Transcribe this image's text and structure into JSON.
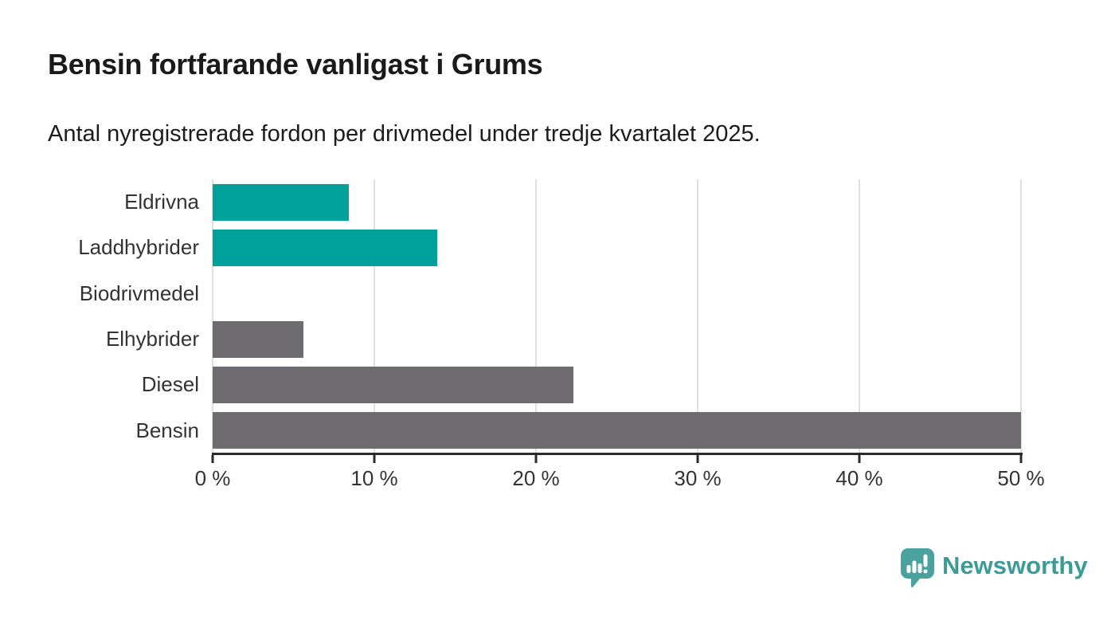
{
  "header": {
    "title": "Bensin fortfarande vanligast i Grums",
    "subtitle": "Antal nyregistrerade fordon per drivmedel under tredje kvartalet 2025."
  },
  "chart_data": {
    "type": "bar",
    "orientation": "horizontal",
    "title": "Bensin fortfarande vanligast i Grums",
    "subtitle": "Antal nyregistrerade fordon per drivmedel under tredje kvartalet 2025.",
    "categories": [
      "Eldrivna",
      "Laddhybrider",
      "Biodrivmedel",
      "Elhybrider",
      "Diesel",
      "Bensin"
    ],
    "values": [
      8.4,
      13.9,
      0,
      5.6,
      22.3,
      50
    ],
    "unit": "%",
    "bar_colors": [
      "#00a19a",
      "#00a19a",
      "#00a19a",
      "#6e6b71",
      "#6e6b71",
      "#6e6b71"
    ],
    "xlim": [
      0,
      50
    ],
    "x_ticks": [
      0,
      10,
      20,
      30,
      40,
      50
    ],
    "x_tick_labels": [
      "0 %",
      "10 %",
      "20 %",
      "30 %",
      "40 %",
      "50 %"
    ],
    "xlabel": "",
    "ylabel": "",
    "grid": true,
    "grid_color": "#e0e0e0",
    "axis_color": "#2b2b2b",
    "legend": "none"
  },
  "footer": {
    "brand": "Newsworthy"
  },
  "colors": {
    "accent_teal": "#00a19a",
    "neutral_gray": "#6e6b71",
    "logo_bubble": "#4ba19d",
    "logo_text": "#3d9b97",
    "background": "#ffffff"
  }
}
